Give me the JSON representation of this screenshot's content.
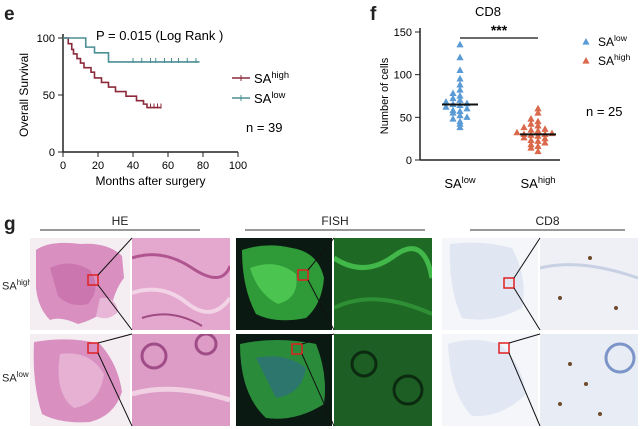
{
  "panels": {
    "e": {
      "label": "e",
      "annotation": "P = 0.015 (Log Rank )",
      "n_text": "n = 39",
      "chart_data": {
        "type": "line",
        "xlabel": "Months after surgery",
        "ylabel": "Overall Survival",
        "xlim": [
          0,
          100
        ],
        "ylim": [
          0,
          100
        ],
        "xticks": [
          0,
          20,
          40,
          60,
          80,
          100
        ],
        "yticks": [
          0,
          50,
          100
        ],
        "legend_placement": "right",
        "series": [
          {
            "name_main": "SA",
            "name_sup": "high",
            "color": "#8b2a3a",
            "x": [
              0,
              3,
              3,
              5,
              5,
              6,
              6,
              8,
              8,
              10,
              10,
              12,
              12,
              16,
              16,
              18,
              18,
              22,
              22,
              26,
              26,
              30,
              30,
              36,
              36,
              42,
              42,
              46,
              46,
              48,
              48,
              56
            ],
            "y": [
              100,
              100,
              95,
              95,
              90,
              90,
              86,
              86,
              82,
              82,
              78,
              78,
              74,
              74,
              70,
              70,
              65,
              65,
              61,
              61,
              57,
              57,
              53,
              53,
              49,
              49,
              45,
              45,
              42,
              42,
              39,
              39
            ],
            "censored": [
              [
                50,
                39
              ],
              [
                52,
                39
              ],
              [
                54,
                39
              ],
              [
                56,
                39
              ]
            ]
          },
          {
            "name_main": "SA",
            "name_sup": "low",
            "color": "#4a8f94",
            "x": [
              0,
              13,
              13,
              18,
              18,
              26,
              26,
              78
            ],
            "y": [
              100,
              100,
              92,
              92,
              87,
              87,
              79,
              79
            ],
            "censored": [
              [
                40,
                79
              ],
              [
                45,
                79
              ],
              [
                50,
                79
              ],
              [
                53,
                79
              ],
              [
                58,
                79
              ],
              [
                62,
                79
              ],
              [
                66,
                79
              ],
              [
                71,
                79
              ],
              [
                76,
                79
              ]
            ]
          }
        ]
      }
    },
    "f": {
      "label": "f",
      "significance": "***",
      "n_text": "n = 25",
      "chart_data": {
        "type": "scatter",
        "title": "CD8",
        "ylabel": "Number of cells",
        "ylim": [
          0,
          150
        ],
        "yticks": [
          0,
          50,
          100,
          150
        ],
        "legend_placement": "right",
        "categories": [
          {
            "main": "SA",
            "sup": "low"
          },
          {
            "main": "SA",
            "sup": "high"
          }
        ],
        "series": [
          {
            "name_main": "SA",
            "name_sup": "low",
            "color": "#5b9bd5",
            "median": 65,
            "values": [
              38,
              42,
              45,
              48,
              50,
              52,
              55,
              57,
              58,
              60,
              62,
              64,
              65,
              66,
              68,
              70,
              72,
              75,
              78,
              82,
              88,
              95,
              105,
              120,
              135
            ]
          },
          {
            "name_main": "SA",
            "name_sup": "high",
            "color": "#d9694a",
            "median": 30,
            "values": [
              10,
              14,
              16,
              18,
              20,
              22,
              23,
              25,
              26,
              28,
              29,
              30,
              30,
              31,
              32,
              34,
              35,
              36,
              38,
              40,
              42,
              45,
              48,
              55,
              60
            ]
          }
        ]
      }
    },
    "g": {
      "label": "g",
      "groups": [
        "HE",
        "FISH",
        "CD8"
      ],
      "rows": [
        {
          "main": "SA",
          "sup": "high"
        },
        {
          "main": "SA",
          "sup": "low"
        }
      ]
    }
  }
}
